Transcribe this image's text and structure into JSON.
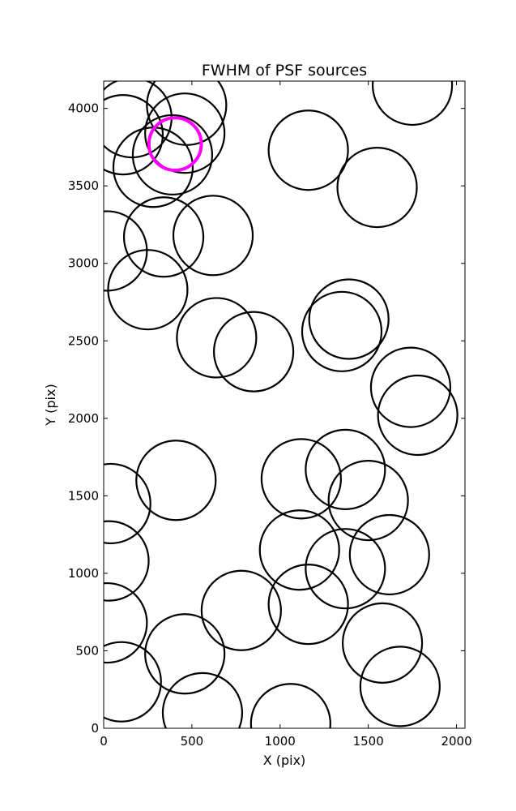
{
  "chart_data": {
    "type": "scatter",
    "title": "FWHM of PSF sources",
    "xlabel": "X (pix)",
    "ylabel": "Y (pix)",
    "xlim": [
      0,
      2048
    ],
    "ylim": [
      0,
      4176
    ],
    "xticks": [
      0,
      500,
      1000,
      1500,
      2000
    ],
    "yticks": [
      0,
      500,
      1000,
      1500,
      2000,
      2500,
      3000,
      3500,
      4000
    ],
    "grid": false,
    "marker": "circle",
    "circle_radius": 225,
    "colors": {
      "default": "#000000",
      "highlight": "#ff00ff"
    },
    "points": [
      {
        "x": 160,
        "y": 3940
      },
      {
        "x": 470,
        "y": 4020
      },
      {
        "x": 110,
        "y": 3830
      },
      {
        "x": 460,
        "y": 3840
      },
      {
        "x": 390,
        "y": 3700
      },
      {
        "x": 280,
        "y": 3620
      },
      {
        "x": 405,
        "y": 3770,
        "highlight": true
      },
      {
        "x": 1750,
        "y": 4150
      },
      {
        "x": 1160,
        "y": 3730
      },
      {
        "x": 1550,
        "y": 3490
      },
      {
        "x": 340,
        "y": 3170
      },
      {
        "x": 620,
        "y": 3180
      },
      {
        "x": 20,
        "y": 3080
      },
      {
        "x": 250,
        "y": 2830
      },
      {
        "x": 640,
        "y": 2520
      },
      {
        "x": 850,
        "y": 2430
      },
      {
        "x": 1390,
        "y": 2640
      },
      {
        "x": 1350,
        "y": 2560
      },
      {
        "x": 1740,
        "y": 2200
      },
      {
        "x": 1780,
        "y": 2020
      },
      {
        "x": 40,
        "y": 1450
      },
      {
        "x": 410,
        "y": 1600
      },
      {
        "x": 1120,
        "y": 1610
      },
      {
        "x": 1370,
        "y": 1670
      },
      {
        "x": 1500,
        "y": 1470
      },
      {
        "x": 30,
        "y": 1080
      },
      {
        "x": 1110,
        "y": 1150
      },
      {
        "x": 1370,
        "y": 1030
      },
      {
        "x": 1620,
        "y": 1120
      },
      {
        "x": 20,
        "y": 680
      },
      {
        "x": 780,
        "y": 760
      },
      {
        "x": 1160,
        "y": 800
      },
      {
        "x": 460,
        "y": 480
      },
      {
        "x": 1580,
        "y": 550
      },
      {
        "x": 100,
        "y": 300
      },
      {
        "x": 560,
        "y": 100
      },
      {
        "x": 1060,
        "y": 30
      },
      {
        "x": 1680,
        "y": 270
      }
    ]
  }
}
